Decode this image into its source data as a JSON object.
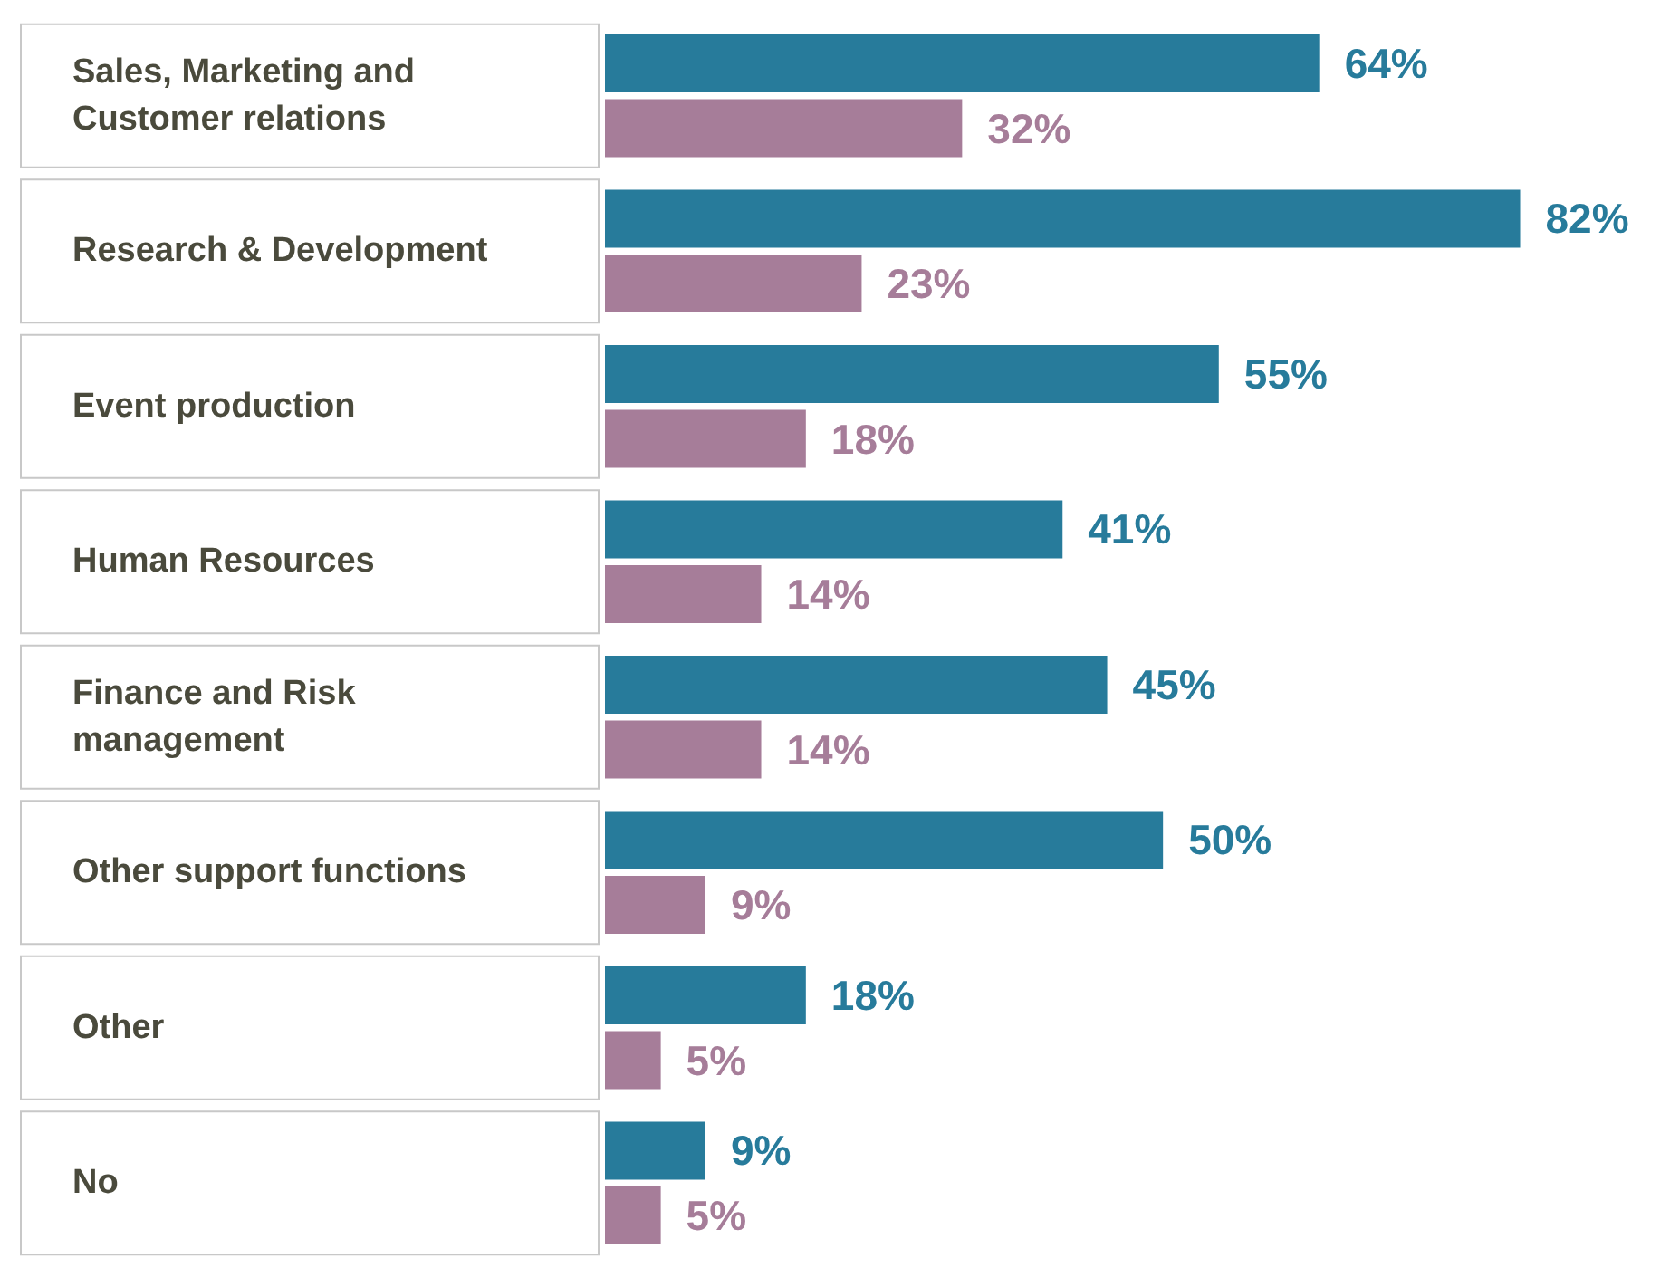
{
  "chart_data": {
    "type": "bar",
    "orientation": "horizontal",
    "categories": [
      "Sales, Marketing and Customer relations",
      "Research & Development",
      "Event production",
      "Human Resources",
      "Finance and Risk management",
      "Other support functions",
      "Other",
      "No"
    ],
    "series": [
      {
        "color": "#277b9b",
        "values": [
          64,
          82,
          55,
          41,
          45,
          50,
          18,
          9
        ],
        "value_labels": [
          "64%",
          "82%",
          "55%",
          "41%",
          "45%",
          "50%",
          "18%",
          "9%"
        ]
      },
      {
        "color": "#a67d99",
        "values": [
          32,
          23,
          18,
          14,
          14,
          9,
          5,
          5
        ],
        "value_labels": [
          "32%",
          "23%",
          "18%",
          "14%",
          "14%",
          "9%",
          "5%",
          "5%"
        ]
      }
    ]
  }
}
